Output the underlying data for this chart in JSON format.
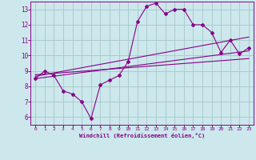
{
  "xlabel": "Windchill (Refroidissement éolien,°C)",
  "background_color": "#cce8ec",
  "grid_color": "#aacccc",
  "line_color": "#880088",
  "xlim": [
    -0.5,
    23.5
  ],
  "ylim": [
    5.5,
    13.5
  ],
  "xticks": [
    0,
    1,
    2,
    3,
    4,
    5,
    6,
    7,
    8,
    9,
    10,
    11,
    12,
    13,
    14,
    15,
    16,
    17,
    18,
    19,
    20,
    21,
    22,
    23
  ],
  "yticks": [
    6,
    7,
    8,
    9,
    10,
    11,
    12,
    13
  ],
  "main_x": [
    0,
    1,
    2,
    3,
    4,
    5,
    6,
    7,
    8,
    9,
    10,
    11,
    12,
    13,
    14,
    15,
    16,
    17,
    18,
    19,
    20,
    21,
    22,
    23
  ],
  "main_y": [
    8.5,
    9.0,
    8.7,
    7.7,
    7.5,
    7.0,
    5.9,
    8.1,
    8.4,
    8.7,
    9.6,
    12.2,
    13.2,
    13.4,
    12.7,
    13.0,
    13.0,
    12.0,
    12.0,
    11.5,
    10.2,
    11.0,
    10.1,
    10.5
  ],
  "trend1_x": [
    0,
    23
  ],
  "trend1_y": [
    8.5,
    10.3
  ],
  "trend2_x": [
    0,
    23
  ],
  "trend2_y": [
    8.65,
    11.2
  ],
  "trend3_x": [
    0,
    23
  ],
  "trend3_y": [
    8.75,
    9.8
  ]
}
